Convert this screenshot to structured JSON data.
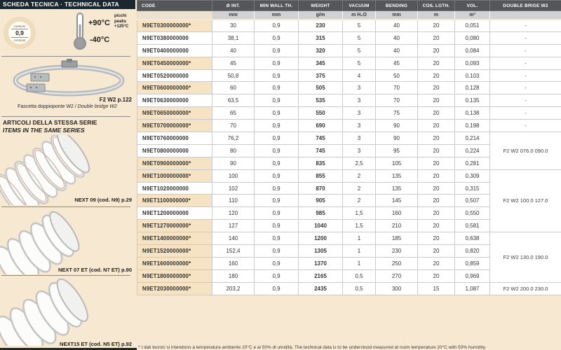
{
  "sidebar": {
    "header": "SCHEDA TECNICA · TECHNICAL DATA",
    "badge": {
      "top": "costante",
      "value": "0,9",
      "bottom": "constant"
    },
    "thermometer": {
      "max": "+90°C",
      "min": "-40°C",
      "peaks_it": "picchi",
      "peaks_en": "peaks",
      "peaks_value": "+125°C"
    },
    "clamp": {
      "ref": "F2 W2 p.122",
      "caption_it": "Fascetta doppioponte W2 / ",
      "caption_en": "Double bridge W2"
    },
    "same_series": {
      "title_it": "ARTICOLI DELLA STESSA SERIE",
      "title_en": "ITEMS IN THE SAME SERIES",
      "items": [
        {
          "label": "NEXT 09 (cod. N9) p.29"
        },
        {
          "label": "NEXT 07 ET (cod. N7 ET) p.90"
        },
        {
          "label": "NEXT15 ET (cod. N5 ET) p.92"
        }
      ]
    }
  },
  "table": {
    "columns": [
      "CODE",
      "Ø INT.",
      "MIN WALL TH.",
      "WEIGHT",
      "VACUUM",
      "BENDING",
      "COIL LGTH.",
      "VOL.",
      "DOUBLE BRIGE W2"
    ],
    "units": [
      "",
      "mm",
      "mm",
      "g/m",
      "m H₂O",
      "mm",
      "m",
      "m³",
      ""
    ],
    "rows": [
      [
        "N9ET0300000000*",
        "30",
        "0,9",
        "230",
        "5",
        "40",
        "20",
        "0,051"
      ],
      [
        "N9ET0380000000",
        "38,1",
        "0,9",
        "315",
        "5",
        "40",
        "20",
        "0,080"
      ],
      [
        "N9ET0400000000",
        "40",
        "0,9",
        "320",
        "5",
        "40",
        "20",
        "0,084"
      ],
      [
        "N9ET0450000000*",
        "45",
        "0,9",
        "345",
        "5",
        "45",
        "20",
        "0,093"
      ],
      [
        "N9ET0520000000",
        "50,8",
        "0,9",
        "375",
        "4",
        "50",
        "20",
        "0,103"
      ],
      [
        "N9ET0600000000*",
        "60",
        "0,9",
        "505",
        "3",
        "70",
        "20",
        "0,128"
      ],
      [
        "N9ET0630000000",
        "63,5",
        "0,9",
        "535",
        "3",
        "70",
        "20",
        "0,135"
      ],
      [
        "N9ET0650000000*",
        "65",
        "0,9",
        "550",
        "3",
        "75",
        "20",
        "0,138"
      ],
      [
        "N9ET0700000000*",
        "70",
        "0,9",
        "690",
        "3",
        "90",
        "20",
        "0,198"
      ],
      [
        "N9ET0760000000",
        "76,2",
        "0,9",
        "745",
        "3",
        "90",
        "20",
        "0,214"
      ],
      [
        "N9ET0800000000",
        "80",
        "0,9",
        "745",
        "3",
        "95",
        "20",
        "0,224"
      ],
      [
        "N9ET0900000000*",
        "90",
        "0,9",
        "835",
        "2,5",
        "105",
        "20",
        "0,281"
      ],
      [
        "N9ET1000000000*",
        "100",
        "0,9",
        "855",
        "2",
        "135",
        "20",
        "0,309"
      ],
      [
        "N9ET1020000000",
        "102",
        "0,9",
        "870",
        "2",
        "135",
        "20",
        "0,315"
      ],
      [
        "N9ET1100000000*",
        "110",
        "0,9",
        "905",
        "2",
        "145",
        "20",
        "0,507"
      ],
      [
        "N9ET1200000000",
        "120",
        "0,9",
        "985",
        "1,5",
        "160",
        "20",
        "0,550"
      ],
      [
        "N9ET1270000000*",
        "127",
        "0,9",
        "1040",
        "1,5",
        "210",
        "20",
        "0,581"
      ],
      [
        "N9ET1400000000*",
        "140",
        "0,9",
        "1200",
        "1",
        "185",
        "20",
        "0,638"
      ],
      [
        "N9ET1520000000*",
        "152,4",
        "0,9",
        "1305",
        "1",
        "230",
        "20",
        "0,820"
      ],
      [
        "N9ET1600000000*",
        "160",
        "0,9",
        "1370",
        "1",
        "250",
        "20",
        "0,859"
      ],
      [
        "N9ET1800000000*",
        "180",
        "0,9",
        "2165",
        "0,5",
        "270",
        "20",
        "0,969"
      ],
      [
        "N9ET2030000000*",
        "203,2",
        "0,9",
        "2435",
        "0,5",
        "300",
        "15",
        "1,087"
      ]
    ],
    "bridge_groups": [
      {
        "start": 0,
        "span": 9,
        "label": "-",
        "per_row": true
      },
      {
        "start": 9,
        "span": 3,
        "label": "F2 W2 076.0 090.0"
      },
      {
        "start": 12,
        "span": 5,
        "label": "F2 W2 100.0 127.0"
      },
      {
        "start": 17,
        "span": 4,
        "label": "F2 W2 130.0 190.0"
      },
      {
        "start": 21,
        "span": 1,
        "label": "F2 W2 200.0 230.0"
      }
    ]
  },
  "footnote": "* I dati tecnici si intendono a temperatura ambiente 20°C e al 50% di umidità. The technical data is to be understood measured at room temperature 20°C with 50% humidity.",
  "colors": {
    "page_bg": "#f6e8d1",
    "dark_bar": "#1c2830",
    "table_header": "#54565a",
    "units_row": "#d1d2d4",
    "highlight": "#f6e3c3",
    "border": "#cacbcd"
  }
}
